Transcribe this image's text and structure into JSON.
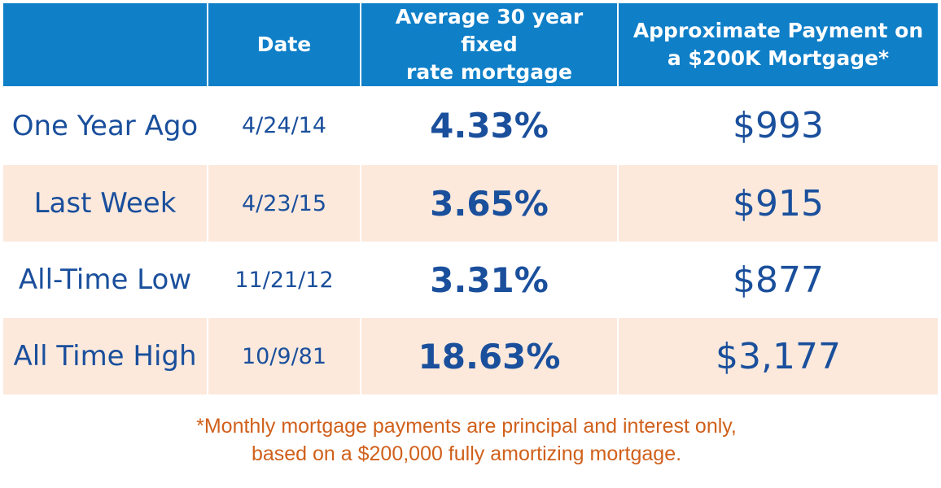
{
  "chart_data": {
    "type": "table",
    "columns": [
      "",
      "Date",
      "Average 30 year fixed rate mortgage",
      "Approximate Payment on a $200K Mortgage*"
    ],
    "header": {
      "c0": "",
      "c1": "Date",
      "c2_line1": "Average 30 year fixed",
      "c2_line2": "rate mortgage",
      "c3_line1": "Approximate Payment on",
      "c3_line2": "a $200K Mortgage*"
    },
    "rows": [
      {
        "label": "One Year Ago",
        "date": "4/24/14",
        "rate": "4.33%",
        "payment": "$993"
      },
      {
        "label": "Last Week",
        "date": "4/23/15",
        "rate": "3.65%",
        "payment": "$915"
      },
      {
        "label": "All-Time Low",
        "date": "11/21/12",
        "rate": "3.31%",
        "payment": "$877"
      },
      {
        "label": "All Time High",
        "date": "10/9/81",
        "rate": "18.63%",
        "payment": "$3,177"
      }
    ],
    "rate_values_percent": [
      4.33,
      3.65,
      3.31,
      18.63
    ],
    "payment_values_usd": [
      993,
      915,
      877,
      3177
    ]
  },
  "footnote": {
    "line1": "*Monthly mortgage payments are principal and interest only,",
    "line2": "based on a $200,000 fully amortizing mortgage."
  },
  "colors": {
    "header_bg": "#0f7fc8",
    "header_text": "#ffffff",
    "body_text": "#1a4f9c",
    "shaded_row": "#fce9dc",
    "footnote_text": "#d0601b"
  }
}
